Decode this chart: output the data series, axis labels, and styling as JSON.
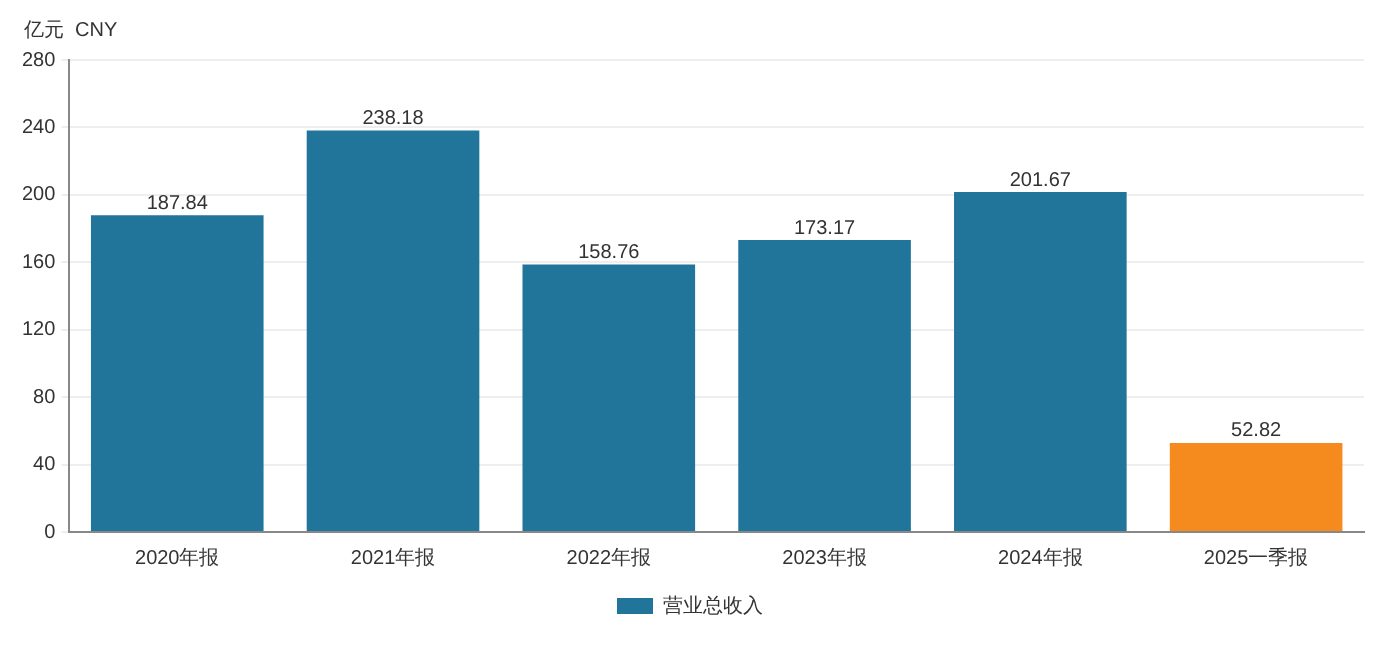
{
  "chart_data": {
    "type": "bar",
    "ylabel": "亿元  CNY",
    "categories": [
      "2020年报",
      "2021年报",
      "2022年报",
      "2023年报",
      "2024年报",
      "2025一季报"
    ],
    "series": [
      {
        "name": "营业总收入",
        "colors": [
          "#21759b",
          "#21759b",
          "#21759b",
          "#21759b",
          "#21759b",
          "#f58a1f"
        ],
        "values": [
          187.84,
          238.18,
          158.76,
          173.17,
          201.67,
          52.82
        ]
      }
    ],
    "ylim": [
      0,
      280
    ],
    "yticks": [
      0,
      40,
      80,
      120,
      160,
      200,
      240,
      280
    ],
    "grid": "y",
    "legend": "bottom",
    "data_labels": true
  }
}
